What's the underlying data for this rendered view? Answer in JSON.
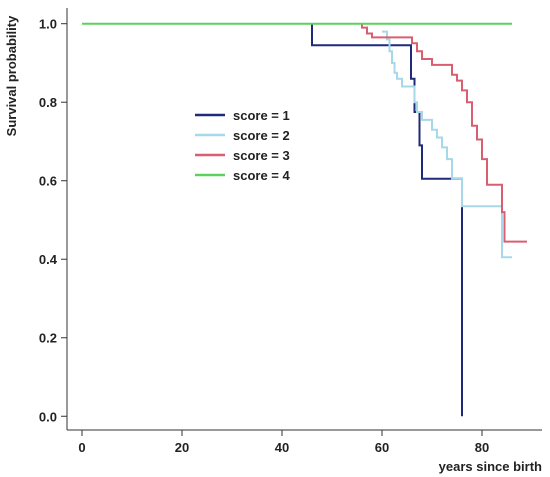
{
  "chart_data": {
    "type": "line",
    "step": true,
    "title": "",
    "xlabel": "years since birth",
    "ylabel": "Survival probability",
    "xlim": [
      -3,
      92
    ],
    "ylim": [
      -0.035,
      1.04
    ],
    "xticks": [
      0,
      20,
      40,
      60,
      80
    ],
    "yticks": [
      0.0,
      0.2,
      0.4,
      0.6,
      0.8,
      1.0
    ],
    "xtick_labels": [
      "0",
      "20",
      "40",
      "60",
      "80"
    ],
    "ytick_labels": [
      "0.0",
      "0.2",
      "0.4",
      "0.6",
      "0.8",
      "1.0"
    ],
    "grid": false,
    "legend_position": "center-left",
    "series": [
      {
        "name": "score = 1",
        "color": "#1f2a7a",
        "x": [
          46,
          46,
          65,
          65.8,
          66.5,
          67.5,
          68,
          76,
          76
        ],
        "y": [
          1.0,
          0.945,
          0.945,
          0.86,
          0.775,
          0.69,
          0.605,
          0.605,
          0.0
        ]
      },
      {
        "name": "score = 2",
        "color": "#a6d8ea",
        "x": [
          60,
          61,
          61.5,
          62,
          62.5,
          63,
          64,
          66,
          66.5,
          67,
          68,
          70,
          71,
          72,
          73,
          74,
          76,
          83,
          84,
          86
        ],
        "y": [
          0.98,
          0.96,
          0.93,
          0.9,
          0.875,
          0.86,
          0.84,
          0.84,
          0.8,
          0.775,
          0.755,
          0.73,
          0.71,
          0.685,
          0.655,
          0.605,
          0.535,
          0.535,
          0.405,
          0.405
        ]
      },
      {
        "name": "score = 3",
        "color": "#d95f70",
        "x": [
          56,
          56,
          57,
          58,
          66,
          67,
          68,
          70,
          74,
          75,
          76,
          77,
          78,
          79,
          80,
          81,
          84,
          84.5,
          89
        ],
        "y": [
          1.0,
          0.99,
          0.975,
          0.965,
          0.95,
          0.93,
          0.91,
          0.895,
          0.87,
          0.855,
          0.83,
          0.8,
          0.74,
          0.705,
          0.655,
          0.59,
          0.52,
          0.445,
          0.445
        ]
      },
      {
        "name": "score = 4",
        "color": "#5bd15b",
        "x": [
          0,
          86
        ],
        "y": [
          1.0,
          1.0
        ]
      }
    ]
  }
}
